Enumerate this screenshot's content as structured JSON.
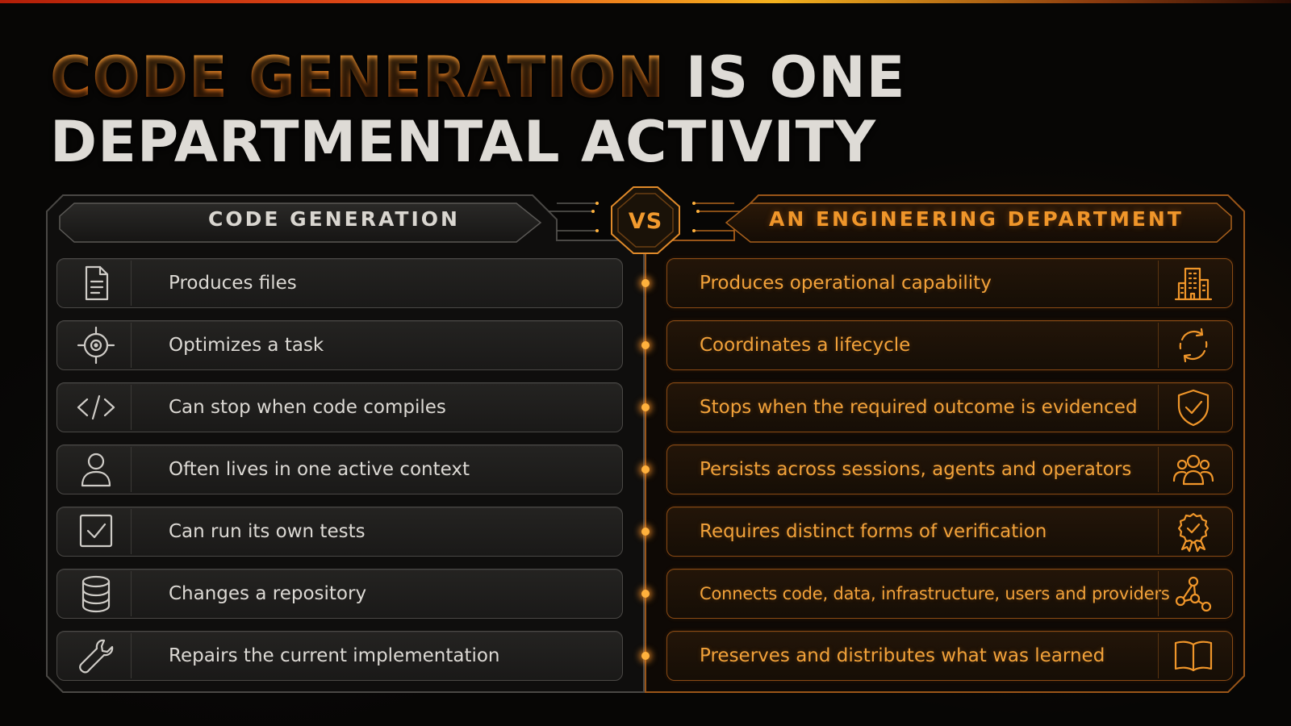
{
  "title": {
    "accent": "CODE GENERATION",
    "rest_line1": " IS ONE",
    "line2": "DEPARTMENTAL ACTIVITY"
  },
  "vs_label": "VS",
  "left_panel": {
    "heading": "CODE GENERATION",
    "items": [
      {
        "label": "Produces files",
        "icon": "document-icon"
      },
      {
        "label": "Optimizes a task",
        "icon": "target-icon"
      },
      {
        "label": "Can stop when code compiles",
        "icon": "code-icon"
      },
      {
        "label": "Often lives in one active context",
        "icon": "user-icon"
      },
      {
        "label": "Can run its own tests",
        "icon": "checkbox-icon"
      },
      {
        "label": "Changes a repository",
        "icon": "database-icon"
      },
      {
        "label": "Repairs the current implementation",
        "icon": "wrench-icon"
      }
    ]
  },
  "right_panel": {
    "heading": "AN ENGINEERING DEPARTMENT",
    "items": [
      {
        "label": "Produces operational capability",
        "icon": "building-icon"
      },
      {
        "label": "Coordinates a lifecycle",
        "icon": "cycle-icon"
      },
      {
        "label": "Stops when the required outcome is evidenced",
        "icon": "shield-check-icon"
      },
      {
        "label": "Persists across sessions, agents and operators",
        "icon": "group-icon"
      },
      {
        "label": "Requires distinct forms of verification",
        "icon": "award-icon"
      },
      {
        "label": "Connects code, data, infrastructure, users and providers",
        "icon": "network-icon"
      },
      {
        "label": "Preserves and distributes what was learned",
        "icon": "book-icon"
      }
    ]
  },
  "colors": {
    "accent": "#f0962a",
    "left_text": "#dcd9d4",
    "background": "#070605"
  }
}
